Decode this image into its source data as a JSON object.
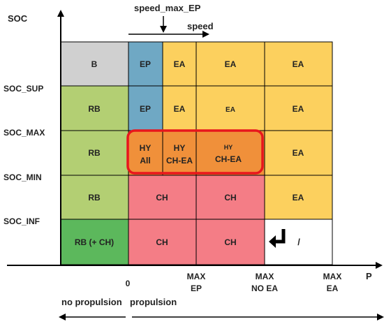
{
  "axes": {
    "y_label": "SOC",
    "x_label": "P",
    "speed_max_label": "speed_max_EP",
    "speed_label": "speed"
  },
  "soc_levels": [
    "SOC_SUP",
    "SOC_MAX",
    "SOC_MIN",
    "SOC_INF"
  ],
  "power_ticks": [
    {
      "line1": "0",
      "line2": ""
    },
    {
      "line1": "MAX",
      "line2": "EP"
    },
    {
      "line1": "MAX",
      "line2": "NO EA"
    },
    {
      "line1": "MAX",
      "line2": "EA"
    }
  ],
  "regions": {
    "no_propulsion": "no propulsion",
    "propulsion": "propulsion"
  },
  "cells": {
    "r1": {
      "b": "B",
      "ep": "EP",
      "ea1": "EA",
      "ea2": "EA",
      "ea3": "EA"
    },
    "r2": {
      "rb": "RB",
      "ep": "EP",
      "ea1": "EA",
      "ea2": "EA",
      "ea3": "EA"
    },
    "r3": {
      "rb": "RB",
      "hy_all": [
        "HY",
        "All"
      ],
      "hy_chea": [
        "HY",
        "CH-EA"
      ],
      "hy_chea_small": [
        "HY",
        "CH-EA"
      ],
      "ea": "EA"
    },
    "r4": {
      "rb": "RB",
      "ch1": "CH",
      "ch2": "CH",
      "ea": "EA"
    },
    "r5": {
      "rbch": "RB (+ CH)",
      "ch1": "CH",
      "ch2": "CH",
      "slash": "/"
    }
  },
  "colors": {
    "gray": "#d0d0d0",
    "green_light": "#b3cf73",
    "green_dark": "#5cb85c",
    "blue": "#6fa8c4",
    "yellow": "#fcd05e",
    "orange": "#f0903a",
    "pink": "#f47d86",
    "red_outline": "#e8161c"
  }
}
